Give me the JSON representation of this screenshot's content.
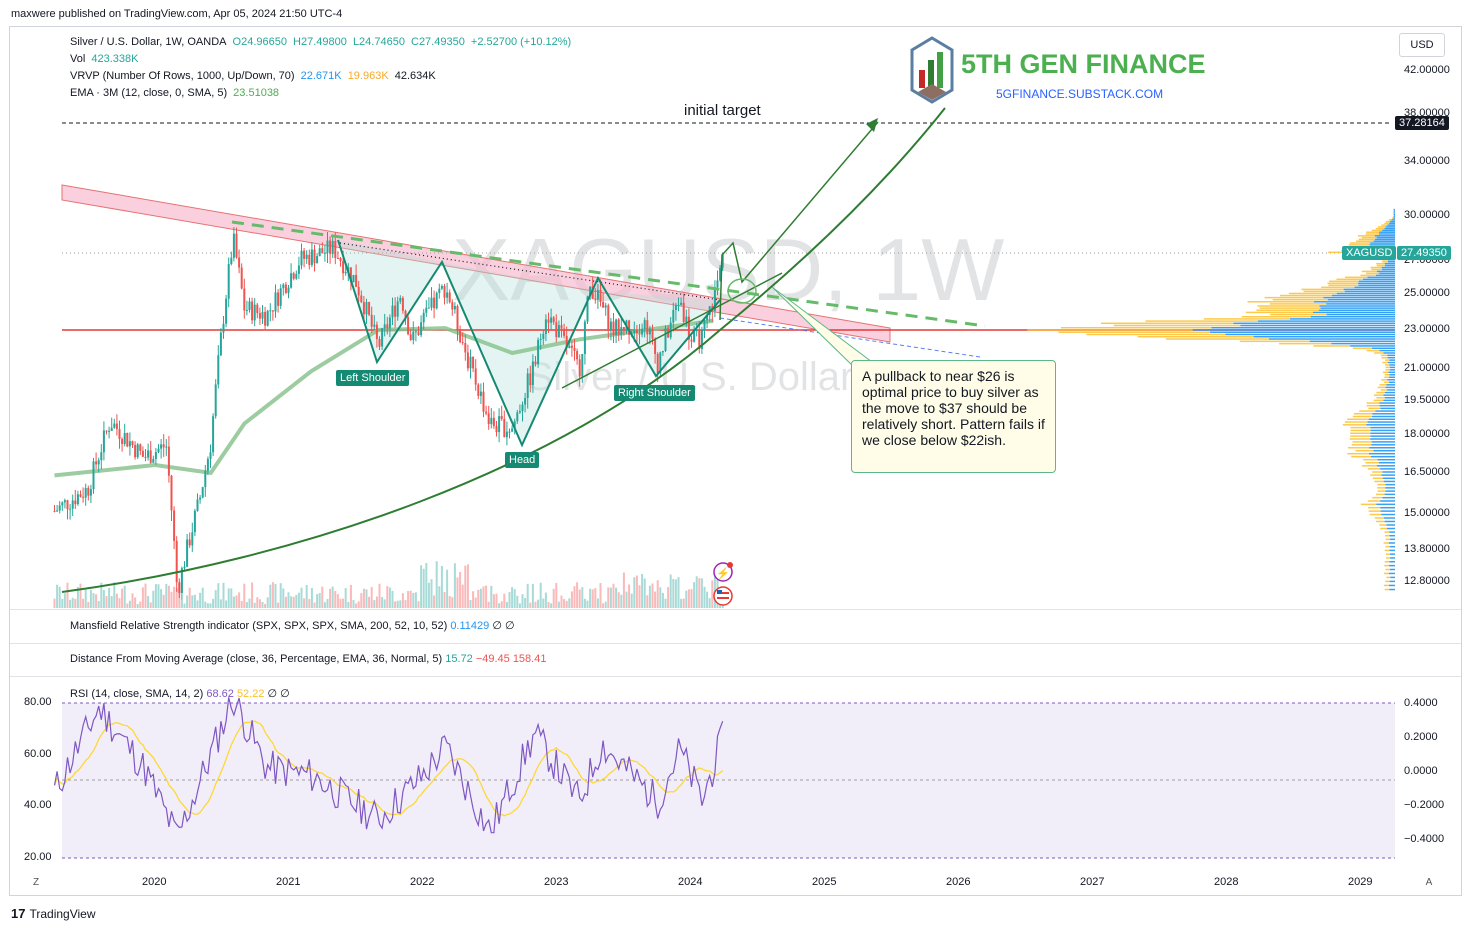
{
  "header": {
    "publisher": "maxwere published on TradingView.com, Apr 05, 2024 21:50 UTC-4"
  },
  "footer": {
    "brand": "TradingView"
  },
  "legend": {
    "symbol": "Silver / U.S. Dollar, 1W, OANDA",
    "ohlc": {
      "o": "O24.96650",
      "h": "H27.49800",
      "l": "L24.74650",
      "c": "C27.49350",
      "chg": "+2.52700 (+10.12%)"
    },
    "vol_label": "Vol",
    "vol_value": "423.338K",
    "vrvp_label": "VRVP (Number Of Rows, 1000, Up/Down, 70)",
    "vrvp_up": "22.671K",
    "vrvp_down": "19.963K",
    "vrvp_total": "42.634K",
    "ema_label": "EMA · 3M (12, close, 0, SMA, 5)",
    "ema_value": "23.51038"
  },
  "watermark": {
    "title": "XAGUSD, 1W",
    "subtitle": "Silver / U.S. Dollar"
  },
  "brand_logo": {
    "name": "5TH GEN FINANCE",
    "url": "5GFINANCE.SUBSTACK.COM"
  },
  "annotations": {
    "initial_target": "initial target",
    "left_shoulder": "Left Shoulder",
    "head": "Head",
    "right_shoulder": "Right Shoulder",
    "callout": "A pullback to near $26 is optimal price to buy silver as the move to $37 should be relatively short.  Pattern fails if we close below $22ish."
  },
  "price_axis": {
    "currency": "USD",
    "ticks": [
      "42.00000",
      "38.00000",
      "34.00000",
      "30.00000",
      "27.00000",
      "25.00000",
      "23.00000",
      "21.00000",
      "19.50000",
      "18.00000",
      "16.50000",
      "15.00000",
      "13.80000",
      "12.80000"
    ],
    "target_label": "37.28164",
    "last_symbol": "XAGUSD",
    "last_price": "27.49350"
  },
  "panes": {
    "mansfield": {
      "label": "Mansfield Relative Strength indicator (SPX, SPX, SPX, SMA, 200, 52, 10, 52)",
      "value": "0.11429",
      "extra": "∅ ∅"
    },
    "distance": {
      "label": "Distance From Moving Average (close, 36, Percentage, EMA, 36, Normal, 5)",
      "v1": "15.72",
      "v2": "−49.45",
      "v3": "158.41"
    },
    "rsi": {
      "label": "RSI (14, close, SMA, 14, 2)",
      "v1": "68.62",
      "v2": "52.22",
      "extra": "∅ ∅",
      "left_ticks": [
        "80.00",
        "60.00",
        "40.00",
        "20.00"
      ],
      "right_ticks": [
        "0.4000",
        "0.2000",
        "0.0000",
        "−0.2000",
        "−0.4000"
      ]
    }
  },
  "time_axis": {
    "years": [
      "2020",
      "2021",
      "2022",
      "2023",
      "2024",
      "2025",
      "2026",
      "2027",
      "2028",
      "2029"
    ]
  },
  "controls": {
    "left": "Z",
    "right": "A"
  },
  "colors": {
    "up": "#26a69a",
    "down": "#ef5350",
    "ema": "#8bc38f",
    "trend": "#2e7d32",
    "support": "#e53935",
    "rsi": "#7e57c2",
    "rsi_ma": "#fdd835",
    "vp_up": "#2196f3",
    "vp_down": "#fbc02d"
  },
  "chart_data": {
    "type": "candlestick",
    "symbol": "XAGUSD",
    "interval": "1W",
    "ylim": [
      12.0,
      44.0
    ],
    "x_range": [
      "2019-04",
      "2029-06"
    ],
    "key_levels": {
      "initial_target": 37.28164,
      "support": 23.0,
      "last": 27.4935
    },
    "close_series": [
      [
        "2019-04",
        15.1
      ],
      [
        "2019-07",
        15.9
      ],
      [
        "2019-09",
        18.6
      ],
      [
        "2019-12",
        17.1
      ],
      [
        "2020-02",
        17.6
      ],
      [
        "2020-03",
        12.5
      ],
      [
        "2020-05",
        15.5
      ],
      [
        "2020-06",
        17.7
      ],
      [
        "2020-08",
        28.4
      ],
      [
        "2020-09",
        24.2
      ],
      [
        "2020-11",
        23.8
      ],
      [
        "2021-02",
        27.1
      ],
      [
        "2021-05",
        27.8
      ],
      [
        "2021-07",
        25.7
      ],
      [
        "2021-09",
        22.1
      ],
      [
        "2021-11",
        25.0
      ],
      [
        "2021-12",
        22.4
      ],
      [
        "2022-03",
        25.5
      ],
      [
        "2022-05",
        21.5
      ],
      [
        "2022-07",
        18.5
      ],
      [
        "2022-09",
        18.3
      ],
      [
        "2022-11",
        21.2
      ],
      [
        "2022-12",
        24.0
      ],
      [
        "2023-03",
        21.0
      ],
      [
        "2023-04",
        25.6
      ],
      [
        "2023-06",
        23.0
      ],
      [
        "2023-09",
        23.4
      ],
      [
        "2023-10",
        21.3
      ],
      [
        "2023-12",
        24.8
      ],
      [
        "2024-01",
        22.4
      ],
      [
        "2024-02",
        22.6
      ],
      [
        "2024-03",
        24.7
      ],
      [
        "2024-04",
        27.49
      ]
    ],
    "ema_series": [
      [
        "2019-04",
        16.4
      ],
      [
        "2020-01",
        16.8
      ],
      [
        "2020-06",
        16.5
      ],
      [
        "2020-09",
        18.5
      ],
      [
        "2021-03",
        20.9
      ],
      [
        "2021-09",
        23.0
      ],
      [
        "2022-03",
        23.1
      ],
      [
        "2022-09",
        21.8
      ],
      [
        "2023-03",
        22.5
      ],
      [
        "2023-09",
        23.0
      ],
      [
        "2024-03",
        23.5
      ]
    ],
    "rsi_series": [
      [
        "2019-04",
        46
      ],
      [
        "2019-08",
        78
      ],
      [
        "2019-12",
        55
      ],
      [
        "2020-03",
        28
      ],
      [
        "2020-06",
        60
      ],
      [
        "2020-08",
        82
      ],
      [
        "2020-11",
        55
      ],
      [
        "2021-03",
        52
      ],
      [
        "2021-09",
        35
      ],
      [
        "2022-01",
        52
      ],
      [
        "2022-03",
        63
      ],
      [
        "2022-07",
        30
      ],
      [
        "2022-11",
        68
      ],
      [
        "2023-03",
        42
      ],
      [
        "2023-05",
        64
      ],
      [
        "2023-10",
        42
      ],
      [
        "2023-12",
        62
      ],
      [
        "2024-02",
        42
      ],
      [
        "2024-04",
        68.62
      ]
    ],
    "rsi_ylim": [
      20,
      80
    ]
  }
}
